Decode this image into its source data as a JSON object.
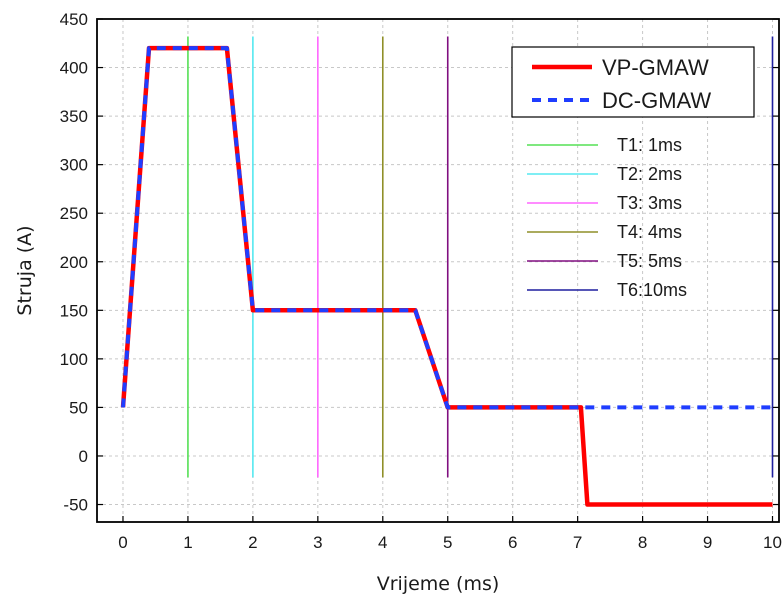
{
  "chart_data": {
    "type": "line",
    "title": "",
    "xlabel": "Vrijeme (ms)",
    "ylabel": "Struja (A)",
    "xlim": [
      -0.4,
      10.1
    ],
    "ylim": [
      -68,
      450
    ],
    "xticks": [
      0,
      1,
      2,
      3,
      4,
      5,
      6,
      7,
      8,
      9,
      10
    ],
    "yticks": [
      -50,
      0,
      50,
      100,
      150,
      200,
      250,
      300,
      350,
      400,
      450
    ],
    "grid": true,
    "legend_position": "top-right",
    "series": [
      {
        "name": "VP-GMAW",
        "color": "#ff0000",
        "style": "solid",
        "x": [
          0,
          0.4,
          1.6,
          2.0,
          4.5,
          5.0,
          7.05,
          7.15,
          10.0
        ],
        "y": [
          50,
          420,
          420,
          150,
          150,
          50,
          50,
          -50,
          -50
        ]
      },
      {
        "name": "DC-GMAW",
        "color": "#1f3dff",
        "style": "dashed",
        "x": [
          0,
          0.4,
          1.6,
          2.0,
          4.5,
          5.0,
          10.0
        ],
        "y": [
          50,
          420,
          420,
          150,
          150,
          50,
          50
        ]
      }
    ],
    "markers": [
      {
        "name": "T1: 1ms",
        "x": 1,
        "color": "#55e055"
      },
      {
        "name": "T2: 2ms",
        "x": 2,
        "color": "#55e8f0"
      },
      {
        "name": "T3: 3ms",
        "x": 3,
        "color": "#ff66ff"
      },
      {
        "name": "T4: 4ms",
        "x": 4,
        "color": "#8f8f28"
      },
      {
        "name": "T5: 5ms",
        "x": 5,
        "color": "#800f80"
      },
      {
        "name": "T6:10ms",
        "x": 10,
        "color": "#1f1f9f"
      }
    ],
    "marker_range": [
      -22,
      432
    ]
  }
}
